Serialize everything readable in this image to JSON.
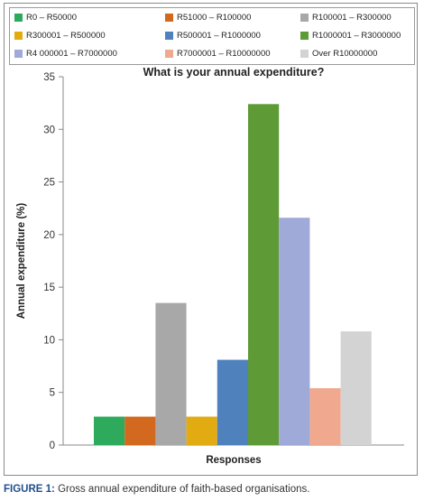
{
  "chart_data": {
    "type": "bar",
    "title": "What is your annual expenditure?",
    "xlabel": "Responses",
    "ylabel": "Annual expenditure (%)",
    "ylim": [
      0,
      35
    ],
    "yticks": [
      0,
      5,
      10,
      15,
      20,
      25,
      30,
      35
    ],
    "grid": false,
    "legend_position": "top",
    "series": [
      {
        "name": "R0 – R50000",
        "value": 2.7,
        "color": "#2eaa5c"
      },
      {
        "name": "R51000 – R100000",
        "value": 2.7,
        "color": "#d2691e"
      },
      {
        "name": "R100001 – R300000",
        "value": 13.5,
        "color": "#a8a8a8"
      },
      {
        "name": "R300001 – R500000",
        "value": 2.7,
        "color": "#e3ab12"
      },
      {
        "name": "R500001 – R1000000",
        "value": 8.1,
        "color": "#4f81bd"
      },
      {
        "name": "R1000001 – R3000000",
        "value": 32.4,
        "color": "#5e9a35"
      },
      {
        "name": "R4 000001 – R7000000",
        "value": 21.6,
        "color": "#9faad8"
      },
      {
        "name": "R7000001 – R10000000",
        "value": 5.4,
        "color": "#f0a98f"
      },
      {
        "name": "Over R10000000",
        "value": 10.8,
        "color": "#d3d3d3"
      }
    ]
  },
  "caption": {
    "label": "FIGURE 1:",
    "text": " Gross annual expenditure of faith-based organisations."
  }
}
